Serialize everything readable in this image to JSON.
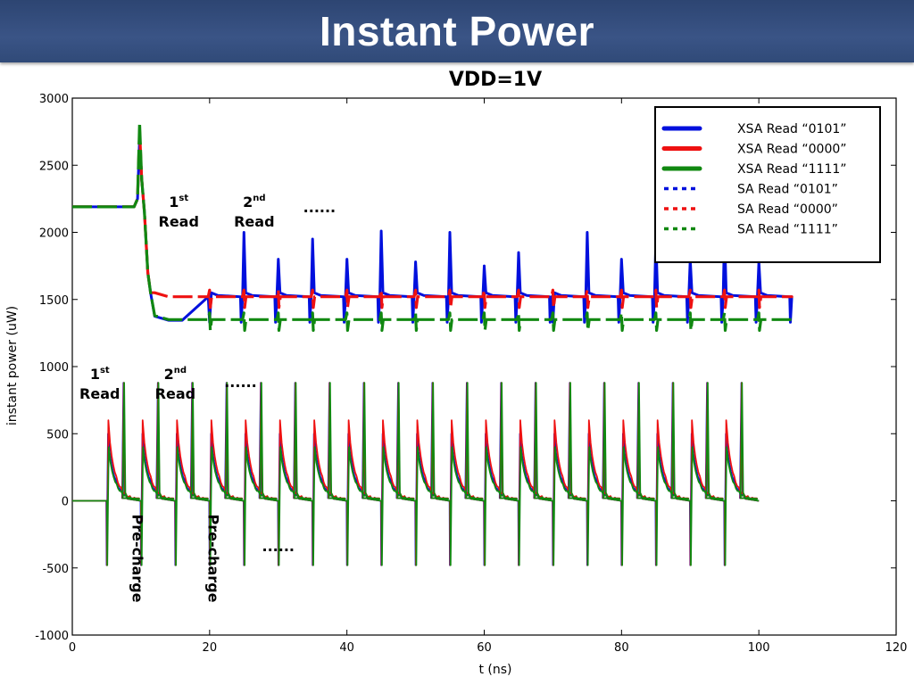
{
  "header": {
    "title": "Instant Power"
  },
  "chart_data": {
    "type": "line",
    "title": "VDD=1V",
    "xlabel": "t (ns)",
    "ylabel": "instant power (uW)",
    "xlim": [
      0,
      120
    ],
    "ylim": [
      -1000,
      3000
    ],
    "x_ticks": [
      "0",
      "20",
      "40",
      "60",
      "80",
      "100",
      "120"
    ],
    "y_ticks": [
      "-1000",
      "-500",
      "0",
      "500",
      "1000",
      "1500",
      "2000",
      "2500",
      "3000"
    ],
    "grid": false,
    "legend_position": "top-right",
    "series": [
      {
        "name": "XSA Read “0101”",
        "style": "solid",
        "color": "#0010dd",
        "base": 1520,
        "hold": 2190,
        "settled": 1345,
        "reads": [
          1330,
          2000,
          1800,
          1950,
          1800,
          2010,
          1780,
          2000,
          1750,
          1850
        ]
      },
      {
        "name": "XSA Read “0000”",
        "style": "solid",
        "color": "#ee1111",
        "base": 1520,
        "hold": 2190,
        "settled": 1520,
        "reads": []
      },
      {
        "name": "XSA Read “1111”",
        "style": "solid",
        "color": "#118811",
        "base": 1350,
        "hold": 2190,
        "settled": 1350,
        "reads": []
      },
      {
        "name": "SA Read “0101”",
        "style": "dashed",
        "color": "#0010dd",
        "period_ns": 5,
        "start_ns": 5,
        "end_ns": 100,
        "peak": 880,
        "shoulder": 500,
        "min": -480
      },
      {
        "name": "SA Read “0000”",
        "style": "dashed",
        "color": "#ee1111",
        "period_ns": 5,
        "start_ns": 5,
        "end_ns": 100,
        "peak": 880,
        "shoulder": 600,
        "min": -480
      },
      {
        "name": "SA Read “1111”",
        "style": "dashed",
        "color": "#118811",
        "period_ns": 5,
        "start_ns": 5,
        "end_ns": 100,
        "peak": 880,
        "shoulder": 400,
        "min": -480
      }
    ],
    "annotations": {
      "upper_first_sup": "st",
      "upper_first_num": "1",
      "upper_first_word": "Read",
      "upper_second_num": "2",
      "upper_second_sup": "nd",
      "upper_second_word": "Read",
      "upper_ellipsis": "......",
      "lower_first_num": "1",
      "lower_first_sup": "st",
      "lower_first_word": "Read",
      "lower_second_num": "2",
      "lower_second_sup": "nd",
      "lower_second_word": "Read",
      "lower_ellipsis": "......",
      "precharge_1": "Pre-charge",
      "precharge_2": "Pre-charge",
      "precharge_ellipsis": "......"
    }
  }
}
